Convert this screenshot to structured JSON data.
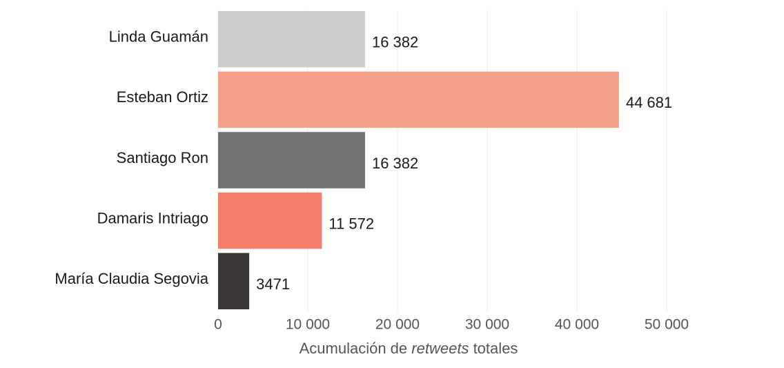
{
  "chart_data": {
    "type": "barh",
    "categories": [
      "Linda Guamán",
      "Esteban Ortiz",
      "Santiago Ron",
      "Damaris Intriago",
      "María Claudia Segovia"
    ],
    "values": [
      16382,
      44681,
      16382,
      11572,
      3471
    ],
    "value_labels": [
      "16 382",
      "44 681",
      "16 382",
      "11 572",
      "3471"
    ],
    "colors": [
      "#cbcccd",
      "#f5a088",
      "#727274",
      "#f37e6b",
      "#3a3637"
    ],
    "xlim": [
      0,
      50000
    ],
    "xticks": [
      0,
      {
        "value": 10000,
        "label": "10 000"
      },
      {
        "value": 20000,
        "label": "20 000"
      },
      {
        "value": 30000,
        "label": "30 000"
      },
      {
        "value": 40000,
        "label": "40 000"
      },
      {
        "value": 50000,
        "label": "50 000"
      }
    ],
    "xlabel": [
      "Acumulación de",
      "retweets",
      "totales"
    ],
    "grid": true
  }
}
